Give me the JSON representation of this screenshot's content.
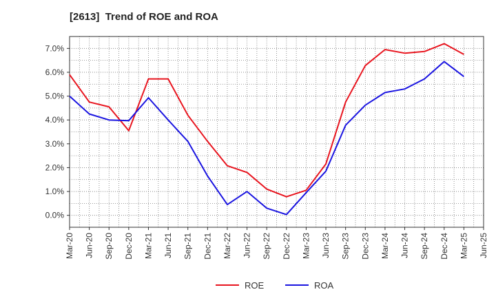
{
  "chart_data": {
    "type": "line",
    "title": "[2613]  Trend of ROE and ROA",
    "xlabel": "",
    "ylabel": "",
    "x": [
      "Mar-20",
      "Jun-20",
      "Sep-20",
      "Dec-20",
      "Mar-21",
      "Jun-21",
      "Sep-21",
      "Dec-21",
      "Mar-22",
      "Jun-22",
      "Sep-22",
      "Dec-22",
      "Mar-23",
      "Jun-23",
      "Sep-23",
      "Dec-23",
      "Mar-24",
      "Jun-24",
      "Sep-24",
      "Dec-24",
      "Mar-25",
      "Jun-25"
    ],
    "y_ticks": [
      "0.0%",
      "1.0%",
      "2.0%",
      "3.0%",
      "4.0%",
      "5.0%",
      "6.0%",
      "7.0%"
    ],
    "ylim": [
      -0.5,
      7.5
    ],
    "grid": true,
    "legend_position": "bottom",
    "series": [
      {
        "name": "ROE",
        "color": "#e8141e",
        "values": [
          5.9,
          4.75,
          4.55,
          3.55,
          5.72,
          5.72,
          4.2,
          3.1,
          2.08,
          1.8,
          1.1,
          0.78,
          1.05,
          2.15,
          4.75,
          6.28,
          6.95,
          6.8,
          6.87,
          7.2,
          6.75,
          null
        ]
      },
      {
        "name": "ROA",
        "color": "#1a14e0",
        "values": [
          5.0,
          4.25,
          4.0,
          3.97,
          4.93,
          4.0,
          3.1,
          1.65,
          0.45,
          1.0,
          0.3,
          0.03,
          0.95,
          1.85,
          3.78,
          4.62,
          5.15,
          5.3,
          5.72,
          6.45,
          5.82,
          null
        ]
      }
    ]
  }
}
